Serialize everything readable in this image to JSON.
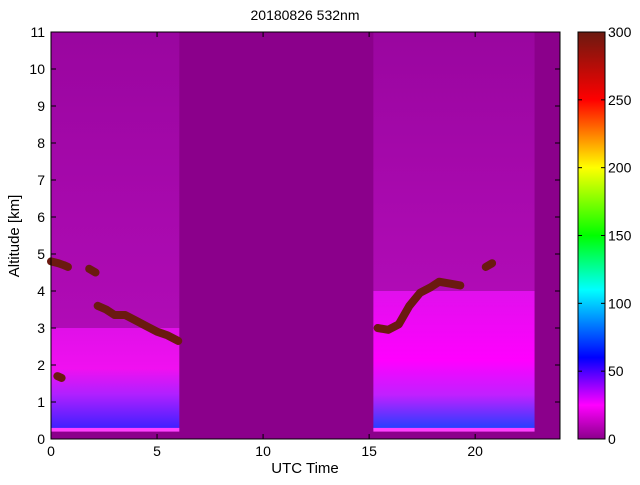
{
  "chart_data": {
    "type": "heatmap",
    "title": "20180826 532nm",
    "xlabel": "UTC Time",
    "ylabel": "Altitude [km]",
    "xlim": [
      0,
      24
    ],
    "ylim": [
      0,
      11
    ],
    "xticks": [
      0,
      5,
      10,
      15,
      20
    ],
    "yticks": [
      0,
      1,
      2,
      3,
      4,
      5,
      6,
      7,
      8,
      9,
      10,
      11
    ],
    "colorbar": {
      "range": [
        0,
        300
      ],
      "ticks": [
        0,
        50,
        100,
        150,
        200,
        250,
        300
      ],
      "colormap": [
        {
          "value": 0,
          "color": "#8b008b"
        },
        {
          "value": 25,
          "color": "#ff00ff"
        },
        {
          "value": 60,
          "color": "#0000ff"
        },
        {
          "value": 110,
          "color": "#00ffff"
        },
        {
          "value": 150,
          "color": "#00ff00"
        },
        {
          "value": 200,
          "color": "#ffff00"
        },
        {
          "value": 250,
          "color": "#ff0000"
        },
        {
          "value": 300,
          "color": "#6b1a10"
        }
      ]
    },
    "background_value": 0,
    "observation_periods": [
      {
        "start": 0,
        "end": 6.05,
        "boundary_layer_top": 3.0,
        "noise_top": 11,
        "aerosol_top": 1.2
      },
      {
        "start": 15.2,
        "end": 22.8,
        "boundary_layer_top": 4.0,
        "noise_top": 11,
        "aerosol_top": 1.0
      }
    ],
    "cloud_layers": [
      {
        "value": 300,
        "points": [
          [
            0,
            4.8
          ],
          [
            0.35,
            4.75
          ],
          [
            0.6,
            4.7
          ],
          [
            0.8,
            4.65
          ]
        ]
      },
      {
        "value": 300,
        "points": [
          [
            1.8,
            4.6
          ],
          [
            2.1,
            4.5
          ]
        ]
      },
      {
        "value": 300,
        "points": [
          [
            0.3,
            1.7
          ],
          [
            0.5,
            1.65
          ]
        ]
      },
      {
        "value": 300,
        "points": [
          [
            2.2,
            3.6
          ],
          [
            2.6,
            3.5
          ],
          [
            3.0,
            3.35
          ],
          [
            3.5,
            3.35
          ],
          [
            4.0,
            3.2
          ],
          [
            4.5,
            3.05
          ],
          [
            5.0,
            2.9
          ],
          [
            5.5,
            2.8
          ],
          [
            6.0,
            2.65
          ]
        ]
      },
      {
        "value": 300,
        "points": [
          [
            15.4,
            3.0
          ],
          [
            15.9,
            2.95
          ],
          [
            16.4,
            3.1
          ],
          [
            16.9,
            3.6
          ],
          [
            17.4,
            3.95
          ],
          [
            17.9,
            4.1
          ],
          [
            18.3,
            4.25
          ],
          [
            18.8,
            4.2
          ],
          [
            19.3,
            4.15
          ]
        ]
      },
      {
        "value": 300,
        "points": [
          [
            20.5,
            4.65
          ],
          [
            20.8,
            4.75
          ]
        ]
      }
    ]
  }
}
